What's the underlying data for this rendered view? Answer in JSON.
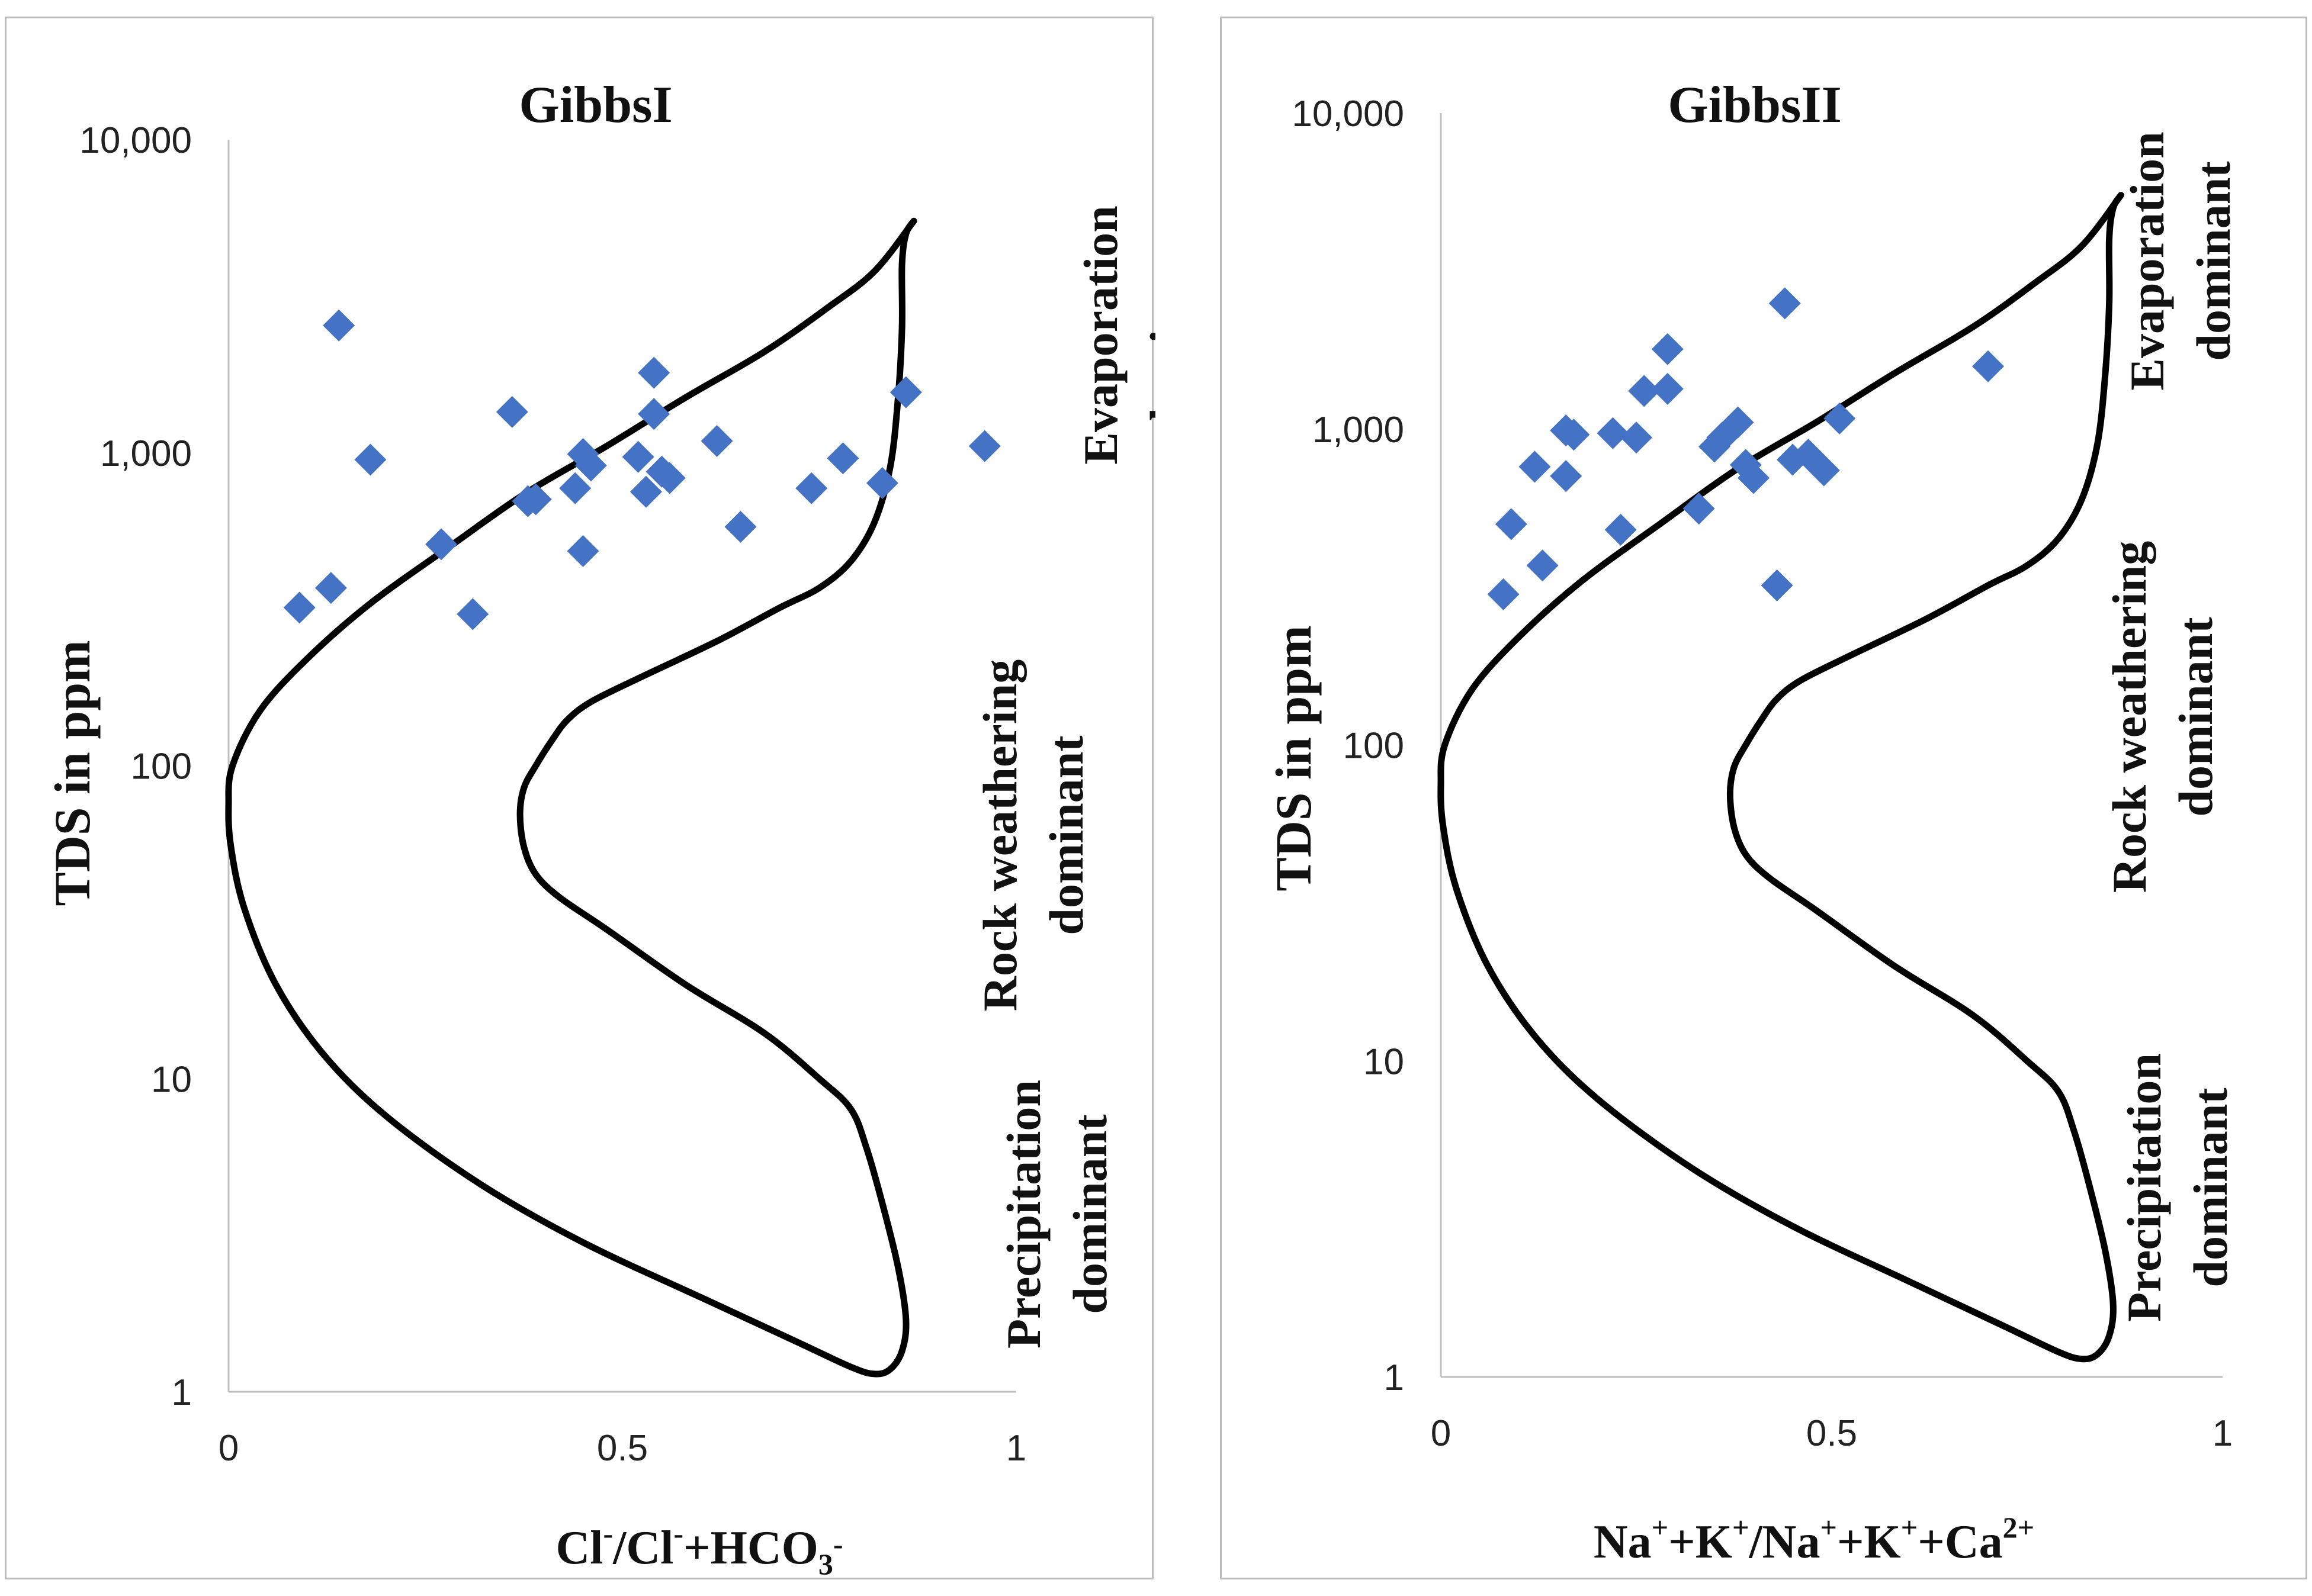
{
  "chart_data": [
    {
      "type": "scatter",
      "title": "GibbsI",
      "ylabel": "TDS in ppm",
      "xlabel": {
        "parts": [
          [
            "Cl",
            "-"
          ],
          [
            "/Cl",
            "-"
          ],
          [
            "+HCO",
            ""
          ],
          [
            "3",
            "sub"
          ],
          [
            "",
            "-"
          ]
        ]
      },
      "xlim": [
        0,
        1
      ],
      "ylim": [
        1,
        10000
      ],
      "yscale": "log",
      "x_ticks": [
        "0",
        "0.5",
        "1"
      ],
      "y_ticks": [
        "1",
        "10",
        "100",
        "1,000",
        "10,000"
      ],
      "marker_color": "#4472C4",
      "zones": {
        "evaporation": [
          "Evaporation",
          "dominant"
        ],
        "rock": [
          "Rock weathering",
          "dominant"
        ],
        "precipitation": [
          "Precipitation",
          "dominant"
        ]
      },
      "points": [
        [
          0.09,
          320
        ],
        [
          0.13,
          370
        ],
        [
          0.14,
          2550
        ],
        [
          0.18,
          950
        ],
        [
          0.27,
          510
        ],
        [
          0.31,
          305
        ],
        [
          0.36,
          1350
        ],
        [
          0.38,
          700
        ],
        [
          0.39,
          710
        ],
        [
          0.44,
          770
        ],
        [
          0.45,
          990
        ],
        [
          0.46,
          910
        ],
        [
          0.45,
          485
        ],
        [
          0.52,
          970
        ],
        [
          0.53,
          750
        ],
        [
          0.54,
          1800
        ],
        [
          0.54,
          1330
        ],
        [
          0.55,
          870
        ],
        [
          0.56,
          830
        ],
        [
          0.62,
          1090
        ],
        [
          0.65,
          580
        ],
        [
          0.74,
          770
        ],
        [
          0.78,
          960
        ],
        [
          0.83,
          800
        ],
        [
          0.86,
          1560
        ],
        [
          0.96,
          1050
        ]
      ]
    },
    {
      "type": "scatter",
      "title": "GibbsII",
      "ylabel": "TDS in ppm",
      "xlabel": {
        "parts": [
          [
            "Na",
            "+"
          ],
          [
            "+K",
            "+"
          ],
          [
            "/Na",
            "+"
          ],
          [
            "+K",
            "+"
          ],
          [
            "+Ca",
            "2+"
          ]
        ]
      },
      "xlim": [
        0,
        1
      ],
      "ylim": [
        1,
        10000
      ],
      "yscale": "log",
      "x_ticks": [
        "0",
        "0.5",
        "1"
      ],
      "y_ticks": [
        "1",
        "10",
        "100",
        "1,000",
        "10,000"
      ],
      "marker_color": "#4472C4",
      "zones": {
        "evaporation": [
          "Evaporation",
          "dominant"
        ],
        "rock": [
          "Rock weathering",
          "dominant"
        ],
        "precipitation": [
          "Precipitation",
          "dominant"
        ]
      },
      "points": [
        [
          0.08,
          300
        ],
        [
          0.09,
          500
        ],
        [
          0.12,
          760
        ],
        [
          0.13,
          370
        ],
        [
          0.16,
          990
        ],
        [
          0.16,
          710
        ],
        [
          0.17,
          960
        ],
        [
          0.22,
          970
        ],
        [
          0.23,
          480
        ],
        [
          0.25,
          940
        ],
        [
          0.26,
          1320
        ],
        [
          0.29,
          1340
        ],
        [
          0.29,
          1790
        ],
        [
          0.33,
          560
        ],
        [
          0.35,
          880
        ],
        [
          0.36,
          940
        ],
        [
          0.38,
          1050
        ],
        [
          0.39,
          770
        ],
        [
          0.4,
          700
        ],
        [
          0.43,
          320
        ],
        [
          0.44,
          2500
        ],
        [
          0.45,
          800
        ],
        [
          0.47,
          830
        ],
        [
          0.49,
          740
        ],
        [
          0.51,
          1080
        ],
        [
          0.7,
          1580
        ]
      ]
    }
  ]
}
